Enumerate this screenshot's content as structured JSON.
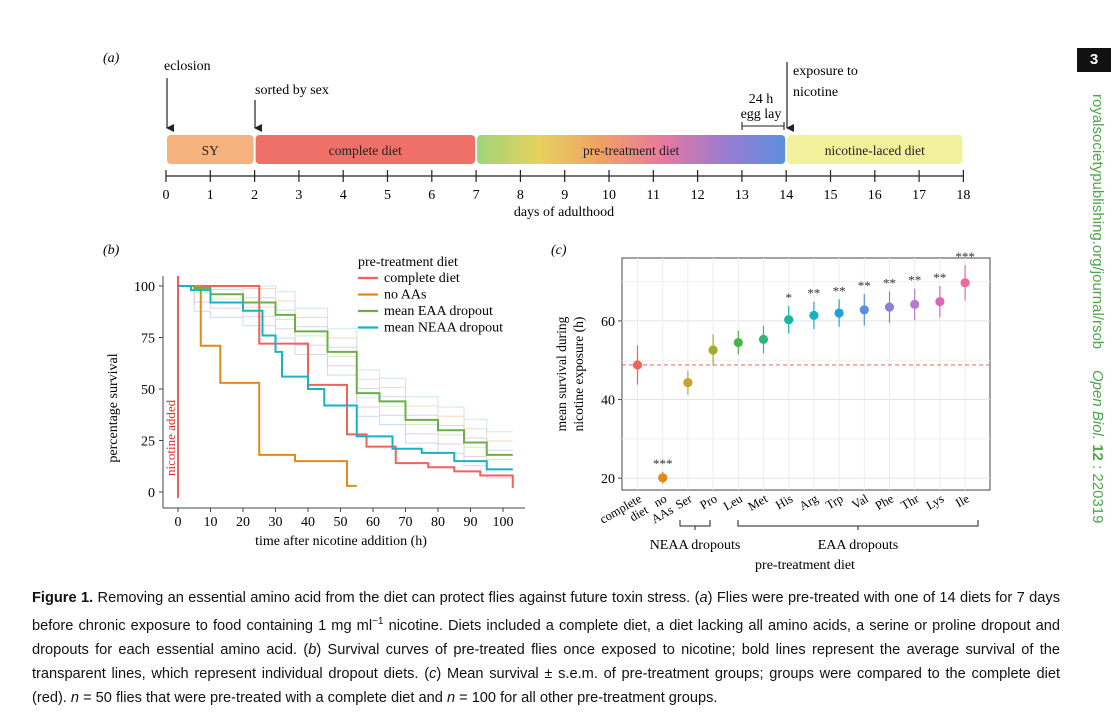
{
  "page_number": "3",
  "sidebar": {
    "url": "royalsocietypublishing.org/journal/rsob",
    "journal": "Open Biol.",
    "volume": "12",
    "article": ": 220319"
  },
  "panel_a": {
    "label": "(a)",
    "annotations": {
      "eclosion": "eclosion",
      "sorted": "sorted by sex",
      "exposure_line1": "exposure to",
      "exposure_line2": "nicotine",
      "egg_line1": "24 h",
      "egg_line2": "egg lay"
    },
    "segments": [
      {
        "label": "SY",
        "start": 0,
        "end": 2,
        "color": "#f6b27e"
      },
      {
        "label": "complete diet",
        "start": 2,
        "end": 7,
        "color": "#ee7068"
      },
      {
        "label": "pre-treatment diet",
        "start": 7,
        "end": 14,
        "color": "gradient"
      },
      {
        "label": "nicotine-laced diet",
        "start": 14,
        "end": 18,
        "color": "#f2f09a"
      }
    ],
    "ticks": [
      "0",
      "1",
      "2",
      "3",
      "4",
      "5",
      "6",
      "7",
      "8",
      "9",
      "10",
      "11",
      "12",
      "13",
      "14",
      "15",
      "16",
      "17",
      "18"
    ],
    "axis_label": "days of adulthood"
  },
  "panel_b": {
    "label": "(b)",
    "ylabel": "percentage survival",
    "xlabel": "time after nicotine addition (h)",
    "nicotine_label": "nicotine added",
    "legend_title": "pre-treatment diet",
    "x_ticks": [
      "0",
      "10",
      "20",
      "30",
      "40",
      "50",
      "60",
      "70",
      "80",
      "90",
      "100"
    ],
    "y_ticks": [
      "0",
      "25",
      "50",
      "75",
      "100"
    ],
    "chart_data": {
      "type": "line",
      "xlim": [
        -5,
        105
      ],
      "ylim": [
        0,
        100
      ],
      "series": [
        {
          "name": "complete diet",
          "color": "#f0625c",
          "x": [
            0,
            25,
            25,
            40,
            40,
            52,
            52,
            58,
            58,
            67,
            67,
            77,
            77,
            85,
            85,
            93,
            93,
            103,
            103
          ],
          "y": [
            100,
            100,
            72,
            72,
            52,
            52,
            28,
            28,
            22,
            22,
            14,
            14,
            12,
            12,
            10,
            10,
            8,
            8,
            2
          ]
        },
        {
          "name": "no AAs",
          "color": "#e08a1e",
          "x": [
            0,
            7,
            7,
            13,
            13,
            25,
            25,
            36,
            36,
            52,
            52,
            55
          ],
          "y": [
            100,
            100,
            71,
            71,
            53,
            53,
            18,
            18,
            15,
            15,
            3,
            3
          ]
        },
        {
          "name": "mean EAA dropout",
          "color": "#6cb043",
          "x": [
            0,
            5,
            5,
            10,
            10,
            20,
            20,
            30,
            30,
            36,
            36,
            46,
            46,
            55,
            55,
            62,
            62,
            70,
            70,
            80,
            80,
            88,
            88,
            95,
            95,
            103
          ],
          "y": [
            100,
            100,
            99,
            99,
            96,
            96,
            92,
            92,
            86,
            86,
            78,
            78,
            68,
            68,
            48,
            48,
            44,
            44,
            35,
            35,
            30,
            30,
            24,
            24,
            18,
            18
          ]
        },
        {
          "name": "mean NEAA dropout",
          "color": "#17b2c6",
          "x": [
            0,
            4,
            4,
            10,
            10,
            20,
            20,
            26,
            26,
            30,
            30,
            32,
            32,
            40,
            40,
            45,
            45,
            55,
            55,
            66,
            66,
            75,
            75,
            85,
            85,
            95,
            95,
            103
          ],
          "y": [
            100,
            100,
            98,
            98,
            92,
            92,
            88,
            88,
            76,
            76,
            68,
            68,
            56,
            56,
            50,
            50,
            42,
            42,
            27,
            27,
            21,
            21,
            19,
            19,
            15,
            15,
            11,
            11
          ]
        }
      ]
    }
  },
  "panel_c": {
    "label": "(c)",
    "ylabel_line1": "mean survival during",
    "ylabel_line2": "nicotine exposure (h)",
    "group1": "NEAA dropouts",
    "group2": "EAA dropouts",
    "xlabel": "pre-treatment diet",
    "y_ticks": [
      "20",
      "40",
      "60"
    ],
    "chart_data": {
      "type": "scatter",
      "ylim": [
        17,
        76
      ],
      "reference_line": 48.8,
      "categories": [
        "complete diet",
        "no AAs",
        "Ser",
        "Pro",
        "Leu",
        "Met",
        "His",
        "Arg",
        "Trp",
        "Val",
        "Phe",
        "Thr",
        "Lys",
        "Ile"
      ],
      "values": [
        48.8,
        20.1,
        44.3,
        52.6,
        54.5,
        55.3,
        60.3,
        61.4,
        62.0,
        62.8,
        63.5,
        64.2,
        64.9,
        69.7
      ],
      "errors": [
        5.0,
        1.5,
        3.0,
        4.0,
        3.0,
        3.5,
        3.5,
        3.5,
        3.5,
        4.0,
        4.0,
        4.0,
        4.0,
        4.5
      ],
      "colors": [
        "#f0625c",
        "#e08a1e",
        "#c4a42c",
        "#a3ab28",
        "#4ab34a",
        "#2fb57a",
        "#1ab59e",
        "#17b2c6",
        "#1ea2dd",
        "#5a8fdd",
        "#8f7fd4",
        "#b67bd0",
        "#d66ab6",
        "#ec6a9e"
      ],
      "significance": [
        "",
        "***",
        "",
        "",
        "",
        "",
        "*",
        "**",
        "**",
        "**",
        "**",
        "**",
        "**",
        "***"
      ]
    }
  },
  "caption": {
    "title": "Figure 1.",
    "text_1": " Removing an essential amino acid from the diet can protect flies against future toxin stress. (",
    "a": "a",
    "text_2": ") Flies were pre-treated with one of 14 diets for 7 days before chronic exposure to food containing 1 mg ml",
    "sup": "−1",
    "text_3": " nicotine. Diets included a complete diet, a diet lacking all amino acids, a serine or proline dropout and dropouts for each essential amino acid. (",
    "b": "b",
    "text_4": ") Survival curves of pre-treated flies once exposed to nicotine; bold lines represent the average survival of the transparent lines, which represent individual dropout diets. (",
    "c": "c",
    "text_5": ") Mean survival ± s.e.m. of pre-treatment groups; groups were compared to the complete diet (red). ",
    "n1": "n",
    "text_6": " = 50 flies that were pre-treated with a complete diet and ",
    "n2": "n",
    "text_7": " = 100 for all other pre-treatment groups."
  }
}
